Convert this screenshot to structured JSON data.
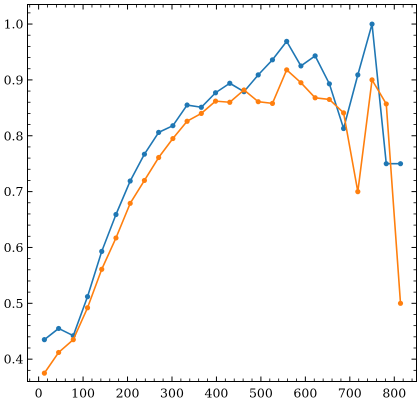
{
  "chart_data": {
    "type": "line",
    "title": "",
    "xlabel": "",
    "ylabel": "",
    "xlim": [
      -25,
      850
    ],
    "ylim": [
      0.36,
      1.035
    ],
    "x_ticks": [
      0,
      100,
      200,
      300,
      400,
      500,
      600,
      700,
      800
    ],
    "y_ticks": [
      0.4,
      0.5,
      0.6,
      0.7,
      0.8,
      0.9,
      1.0
    ],
    "x_tick_labels": [
      "0",
      "100",
      "200",
      "300",
      "400",
      "500",
      "600",
      "700",
      "800"
    ],
    "y_tick_labels": [
      "0.4",
      "0.5",
      "0.6",
      "0.7",
      "0.8",
      "0.9",
      "1.0"
    ],
    "grid": false,
    "ticks_direction": "in",
    "minor_ticks": true,
    "series": [
      {
        "color": "#1f77b4",
        "x": [
          13,
          45,
          78,
          110,
          142,
          174,
          206,
          238,
          270,
          302,
          334,
          366,
          398,
          430,
          462,
          494,
          526,
          558,
          590,
          622,
          654,
          686,
          718,
          750,
          782,
          814
        ],
        "y": [
          0.435,
          0.455,
          0.442,
          0.512,
          0.593,
          0.659,
          0.719,
          0.767,
          0.806,
          0.818,
          0.855,
          0.851,
          0.877,
          0.894,
          0.879,
          0.909,
          0.936,
          0.969,
          0.925,
          0.943,
          0.893,
          0.813,
          0.909,
          1.0,
          0.75,
          0.75
        ]
      },
      {
        "color": "#ff7f0e",
        "x": [
          13,
          45,
          78,
          110,
          142,
          174,
          206,
          238,
          270,
          302,
          334,
          366,
          398,
          430,
          462,
          494,
          526,
          558,
          590,
          622,
          654,
          686,
          718,
          750,
          782,
          814
        ],
        "y": [
          0.375,
          0.412,
          0.435,
          0.492,
          0.561,
          0.617,
          0.679,
          0.72,
          0.761,
          0.795,
          0.826,
          0.84,
          0.862,
          0.86,
          0.882,
          0.861,
          0.858,
          0.918,
          0.895,
          0.868,
          0.865,
          0.841,
          0.7,
          0.9,
          0.857,
          0.5
        ]
      }
    ]
  }
}
